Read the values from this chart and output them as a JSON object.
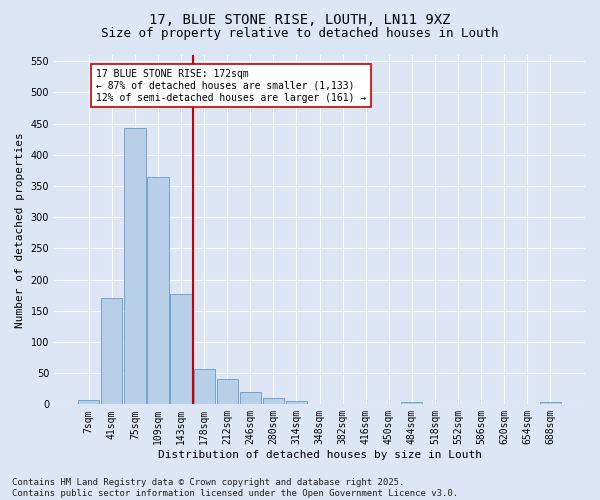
{
  "title1": "17, BLUE STONE RISE, LOUTH, LN11 9XZ",
  "title2": "Size of property relative to detached houses in Louth",
  "xlabel": "Distribution of detached houses by size in Louth",
  "ylabel": "Number of detached properties",
  "categories": [
    "7sqm",
    "41sqm",
    "75sqm",
    "109sqm",
    "143sqm",
    "178sqm",
    "212sqm",
    "246sqm",
    "280sqm",
    "314sqm",
    "348sqm",
    "382sqm",
    "416sqm",
    "450sqm",
    "484sqm",
    "518sqm",
    "552sqm",
    "586sqm",
    "620sqm",
    "654sqm",
    "688sqm"
  ],
  "values": [
    7,
    170,
    443,
    364,
    177,
    57,
    40,
    20,
    10,
    5,
    0,
    0,
    0,
    0,
    3,
    0,
    0,
    0,
    0,
    0,
    3
  ],
  "bar_color": "#b8cfe8",
  "bar_edge_color": "#6699cc",
  "vline_color": "#cc0000",
  "vline_x_index": 4.5,
  "annotation_text": "17 BLUE STONE RISE: 172sqm\n← 87% of detached houses are smaller (1,133)\n12% of semi-detached houses are larger (161) →",
  "annotation_box_facecolor": "#ffffff",
  "annotation_box_edgecolor": "#cc0000",
  "ylim": [
    0,
    560
  ],
  "yticks": [
    0,
    50,
    100,
    150,
    200,
    250,
    300,
    350,
    400,
    450,
    500,
    550
  ],
  "bg_color": "#dce6f5",
  "grid_color": "#ffffff",
  "footer": "Contains HM Land Registry data © Crown copyright and database right 2025.\nContains public sector information licensed under the Open Government Licence v3.0.",
  "title1_fontsize": 10,
  "title2_fontsize": 9,
  "axis_label_fontsize": 8,
  "tick_fontsize": 7,
  "annot_fontsize": 7,
  "footer_fontsize": 6.5
}
